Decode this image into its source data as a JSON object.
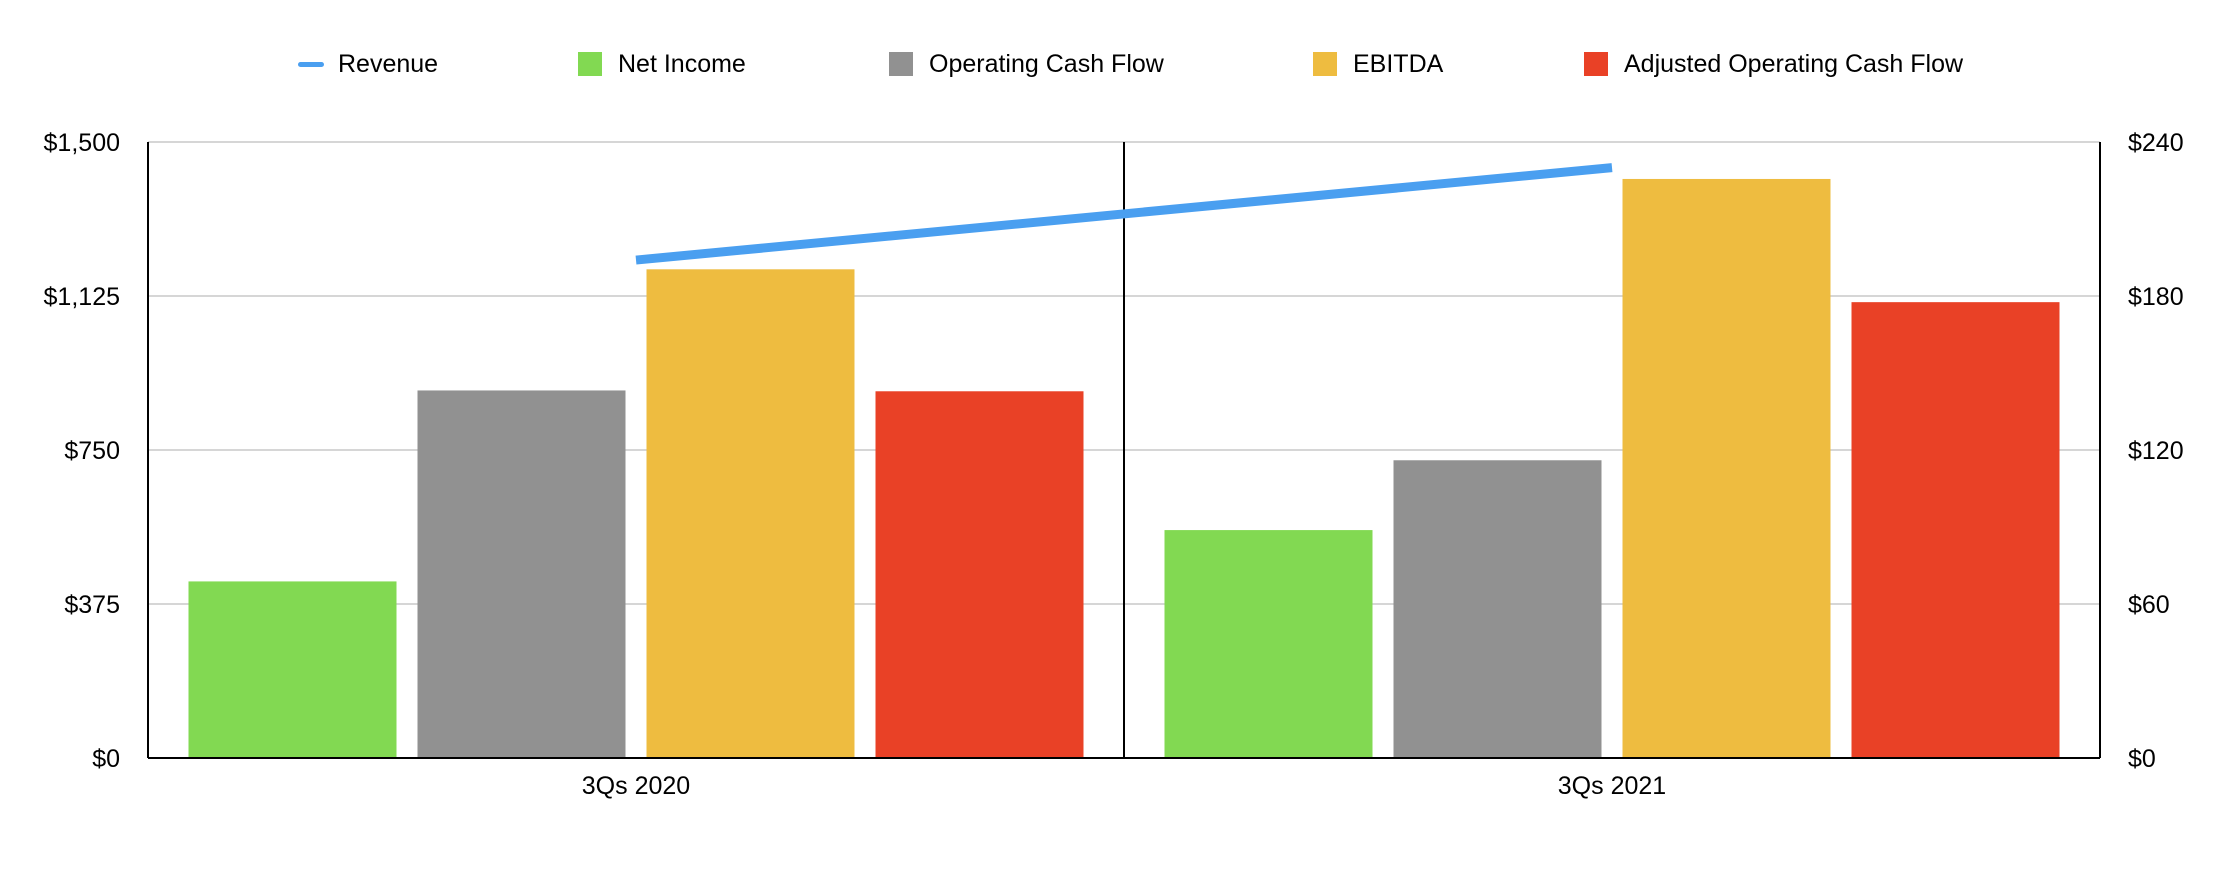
{
  "chart_data": {
    "type": "bar",
    "title": "",
    "xlabel": "",
    "ylabel": "",
    "categories": [
      "3Qs 2020",
      "3Qs 2021"
    ],
    "series": [
      {
        "name": "Net Income",
        "type": "bar",
        "axis": "left",
        "color": "#82D952",
        "values": [
          430,
          555
        ]
      },
      {
        "name": "Operating Cash Flow",
        "type": "bar",
        "axis": "left",
        "color": "#919191",
        "values": [
          895,
          725
        ]
      },
      {
        "name": "EBITDA",
        "type": "bar",
        "axis": "left",
        "color": "#EEBC40",
        "values": [
          1190,
          1410
        ]
      },
      {
        "name": "Adjusted Operating Cash Flow",
        "type": "bar",
        "axis": "left",
        "color": "#E94126",
        "values": [
          893,
          1110
        ]
      },
      {
        "name": "Revenue",
        "type": "line",
        "axis": "right",
        "color": "#4A9FF0",
        "values": [
          194,
          230
        ]
      }
    ],
    "y_left": {
      "min": 0,
      "max": 1500,
      "ticks": [
        "$0",
        "$375",
        "$750",
        "$1,125",
        "$1,500"
      ],
      "tick_values": [
        0,
        375,
        750,
        1125,
        1500
      ]
    },
    "y_right": {
      "min": 0,
      "max": 240,
      "ticks": [
        "$0",
        "$60",
        "$120",
        "$180",
        "$240"
      ],
      "tick_values": [
        0,
        60,
        120,
        180,
        240
      ]
    },
    "grid": true,
    "legend_position": "top",
    "legend_order": [
      "Revenue",
      "Net Income",
      "Operating Cash Flow",
      "EBITDA",
      "Adjusted Operating Cash Flow"
    ]
  }
}
